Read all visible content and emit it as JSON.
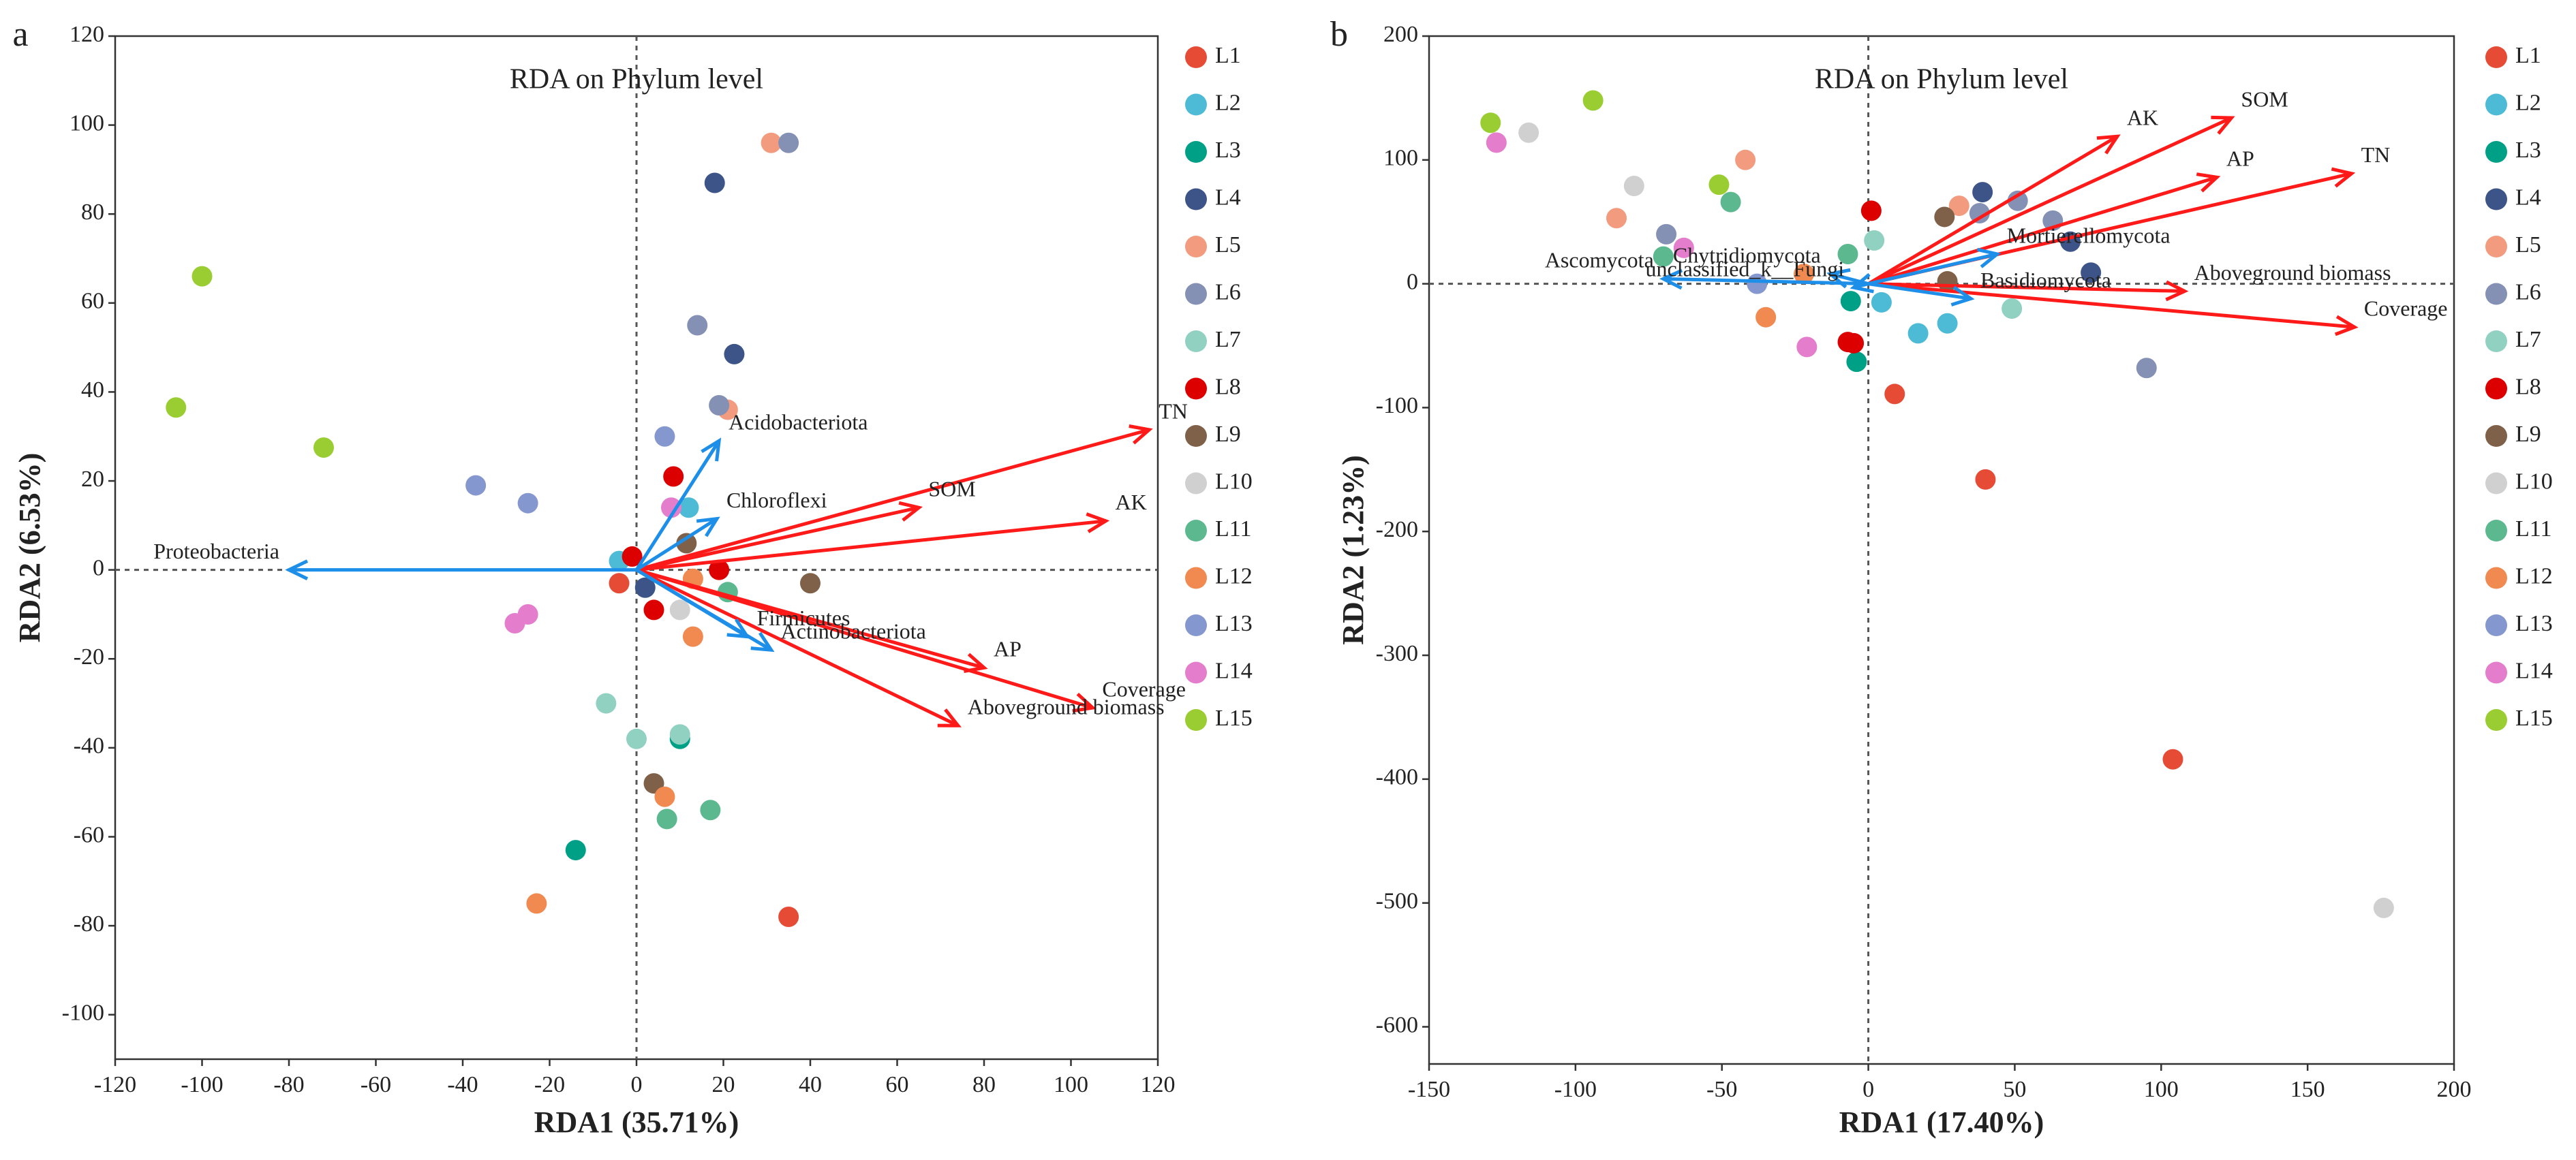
{
  "chart_data": [
    {
      "type": "scatter",
      "panel_label": "a",
      "title": "RDA on Phylum level",
      "x_label": "RDA1 (35.71%)",
      "y_label": "RDA2 (6.53%)",
      "xlim": [
        -120,
        120
      ],
      "ylim": [
        -110,
        120
      ],
      "xticks": [
        -120,
        -100,
        -80,
        -60,
        -40,
        -20,
        0,
        20,
        40,
        60,
        80,
        100,
        120
      ],
      "yticks": [
        -100,
        -80,
        -60,
        -40,
        -20,
        0,
        20,
        40,
        60,
        80,
        100,
        120
      ],
      "series": [
        {
          "name": "L1",
          "color": "#e64b35",
          "x": [
            -4,
            35
          ],
          "y": [
            -3,
            -78
          ]
        },
        {
          "name": "L2",
          "color": "#4dbbd5",
          "x": [
            -4,
            12
          ],
          "y": [
            2,
            14
          ]
        },
        {
          "name": "L3",
          "color": "#00a087",
          "x": [
            -14,
            10
          ],
          "y": [
            -63,
            -38
          ]
        },
        {
          "name": "L4",
          "color": "#3c5488",
          "x": [
            18,
            22.5,
            2
          ],
          "y": [
            87,
            48.5,
            -4
          ]
        },
        {
          "name": "L5",
          "color": "#f39b7f",
          "x": [
            31,
            21
          ],
          "y": [
            96,
            36
          ]
        },
        {
          "name": "L6",
          "color": "#8491b4",
          "x": [
            35,
            14,
            19
          ],
          "y": [
            96,
            55,
            37
          ]
        },
        {
          "name": "L7",
          "color": "#91d1c2",
          "x": [
            -7,
            0,
            10
          ],
          "y": [
            -30,
            -38,
            -37
          ]
        },
        {
          "name": "L8",
          "color": "#dc0000",
          "x": [
            -1,
            8.5,
            19,
            4
          ],
          "y": [
            3,
            21,
            0,
            -9
          ]
        },
        {
          "name": "L9",
          "color": "#7e6148",
          "x": [
            40,
            11.5,
            4
          ],
          "y": [
            -3,
            6,
            -48
          ]
        },
        {
          "name": "L10",
          "color": "#d0d0d0",
          "x": [
            10
          ],
          "y": [
            -9
          ]
        },
        {
          "name": "L11",
          "color": "#5cb88e",
          "x": [
            17,
            7,
            21
          ],
          "y": [
            -54,
            -56,
            -5
          ]
        },
        {
          "name": "L12",
          "color": "#f08a50",
          "x": [
            -23,
            6.5,
            13,
            13
          ],
          "y": [
            -75,
            -51,
            -15,
            -2
          ]
        },
        {
          "name": "L13",
          "color": "#8597cf",
          "x": [
            -37,
            -25,
            6.5
          ],
          "y": [
            19,
            15,
            30
          ]
        },
        {
          "name": "L14",
          "color": "#e47dcb",
          "x": [
            -28,
            -25,
            8
          ],
          "y": [
            -12,
            -10,
            14
          ]
        },
        {
          "name": "L15",
          "color": "#9acd32",
          "x": [
            -100,
            -106,
            -72
          ],
          "y": [
            66,
            36.5,
            27.5
          ]
        }
      ],
      "arrows": [
        {
          "name": "TN",
          "color": "#ff1a1a",
          "x": 118,
          "y": 31.5
        },
        {
          "name": "SOM",
          "color": "#ff1a1a",
          "x": 65,
          "y": 14
        },
        {
          "name": "AK",
          "color": "#ff1a1a",
          "x": 108,
          "y": 11
        },
        {
          "name": "AP",
          "color": "#ff1a1a",
          "x": 80,
          "y": -22
        },
        {
          "name": "Coverage",
          "color": "#ff1a1a",
          "x": 105,
          "y": -31
        },
        {
          "name": "Aboveground biomass",
          "color": "#ff1a1a",
          "x": 74,
          "y": -35
        },
        {
          "name": "Proteobacteria",
          "color": "#1e8fe8",
          "x": -80,
          "y": 0
        },
        {
          "name": "Acidobacteriota",
          "color": "#1e8fe8",
          "x": 19,
          "y": 29
        },
        {
          "name": "Chloroflexi",
          "color": "#1e8fe8",
          "x": 18.5,
          "y": 11.5
        },
        {
          "name": "Firmicutes",
          "color": "#1e8fe8",
          "x": 25.5,
          "y": -15
        },
        {
          "name": "Actinobacteriota",
          "color": "#1e8fe8",
          "x": 31,
          "y": -18
        }
      ]
    },
    {
      "type": "scatter",
      "panel_label": "b",
      "title": "RDA on Phylum level",
      "x_label": "RDA1 (17.40%)",
      "y_label": "RDA2 (1.23%)",
      "xlim": [
        -150,
        200
      ],
      "ylim": [
        -630,
        200
      ],
      "xticks": [
        -150,
        -100,
        -50,
        0,
        50,
        100,
        150,
        200
      ],
      "yticks": [
        -600,
        -500,
        -400,
        -300,
        -200,
        -100,
        0,
        100,
        200
      ],
      "series": [
        {
          "name": "L1",
          "color": "#e64b35",
          "x": [
            104,
            40,
            9
          ],
          "y": [
            -384,
            -158,
            -89
          ]
        },
        {
          "name": "L2",
          "color": "#4dbbd5",
          "x": [
            17,
            27,
            4.5
          ],
          "y": [
            -40,
            -32,
            -15
          ]
        },
        {
          "name": "L3",
          "color": "#00a087",
          "x": [
            -4,
            -6
          ],
          "y": [
            -63,
            -14
          ]
        },
        {
          "name": "L4",
          "color": "#3c5488",
          "x": [
            39,
            69,
            76
          ],
          "y": [
            74,
            34,
            9
          ]
        },
        {
          "name": "L5",
          "color": "#f39b7f",
          "x": [
            -42,
            -86,
            31
          ],
          "y": [
            100,
            53,
            63
          ]
        },
        {
          "name": "L6",
          "color": "#8491b4",
          "x": [
            51,
            63,
            38,
            -69,
            95
          ],
          "y": [
            67,
            51,
            57,
            40,
            -68
          ]
        },
        {
          "name": "L7",
          "color": "#91d1c2",
          "x": [
            2,
            49
          ],
          "y": [
            35,
            -20
          ]
        },
        {
          "name": "L8",
          "color": "#dc0000",
          "x": [
            1,
            -7,
            -5
          ],
          "y": [
            59,
            -47,
            -48
          ]
        },
        {
          "name": "L9",
          "color": "#7e6148",
          "x": [
            26,
            27
          ],
          "y": [
            54,
            2
          ]
        },
        {
          "name": "L10",
          "color": "#d0d0d0",
          "x": [
            -116,
            -80,
            176
          ],
          "y": [
            122,
            79,
            -504
          ]
        },
        {
          "name": "L11",
          "color": "#5cb88e",
          "x": [
            -47,
            -70,
            -7
          ],
          "y": [
            66,
            22,
            24
          ]
        },
        {
          "name": "L12",
          "color": "#f08a50",
          "x": [
            -35,
            -22
          ],
          "y": [
            -27,
            8
          ]
        },
        {
          "name": "L13",
          "color": "#8597cf",
          "x": [
            -38
          ],
          "y": [
            0
          ]
        },
        {
          "name": "L14",
          "color": "#e47dcb",
          "x": [
            -127,
            -63,
            -21
          ],
          "y": [
            114,
            29,
            -51
          ]
        },
        {
          "name": "L15",
          "color": "#9acd32",
          "x": [
            -129,
            -94,
            -51
          ],
          "y": [
            130,
            148,
            80
          ]
        }
      ],
      "arrows": [
        {
          "name": "AK",
          "color": "#ff1a1a",
          "x": 85,
          "y": 119
        },
        {
          "name": "SOM",
          "color": "#ff1a1a",
          "x": 124,
          "y": 134
        },
        {
          "name": "AP",
          "color": "#ff1a1a",
          "x": 119,
          "y": 86
        },
        {
          "name": "TN",
          "color": "#ff1a1a",
          "x": 165,
          "y": 89
        },
        {
          "name": "Aboveground biomass",
          "color": "#ff1a1a",
          "x": 108,
          "y": -6
        },
        {
          "name": "Coverage",
          "color": "#ff1a1a",
          "x": 166,
          "y": -35
        },
        {
          "name": "Ascomycota",
          "color": "#1e8fe8",
          "x": -70,
          "y": 4
        },
        {
          "name": "Chytridiomycota",
          "color": "#1e8fe8",
          "x": -13,
          "y": 8
        },
        {
          "name": "Mortierellomycota",
          "color": "#1e8fe8",
          "x": 44,
          "y": 24
        },
        {
          "name": "unclassified_k__Fungi",
          "color": "#1e8fe8",
          "x": -5,
          "y": -3
        },
        {
          "name": "Basidiomycota",
          "color": "#1e8fe8",
          "x": 35,
          "y": -12
        }
      ]
    }
  ]
}
